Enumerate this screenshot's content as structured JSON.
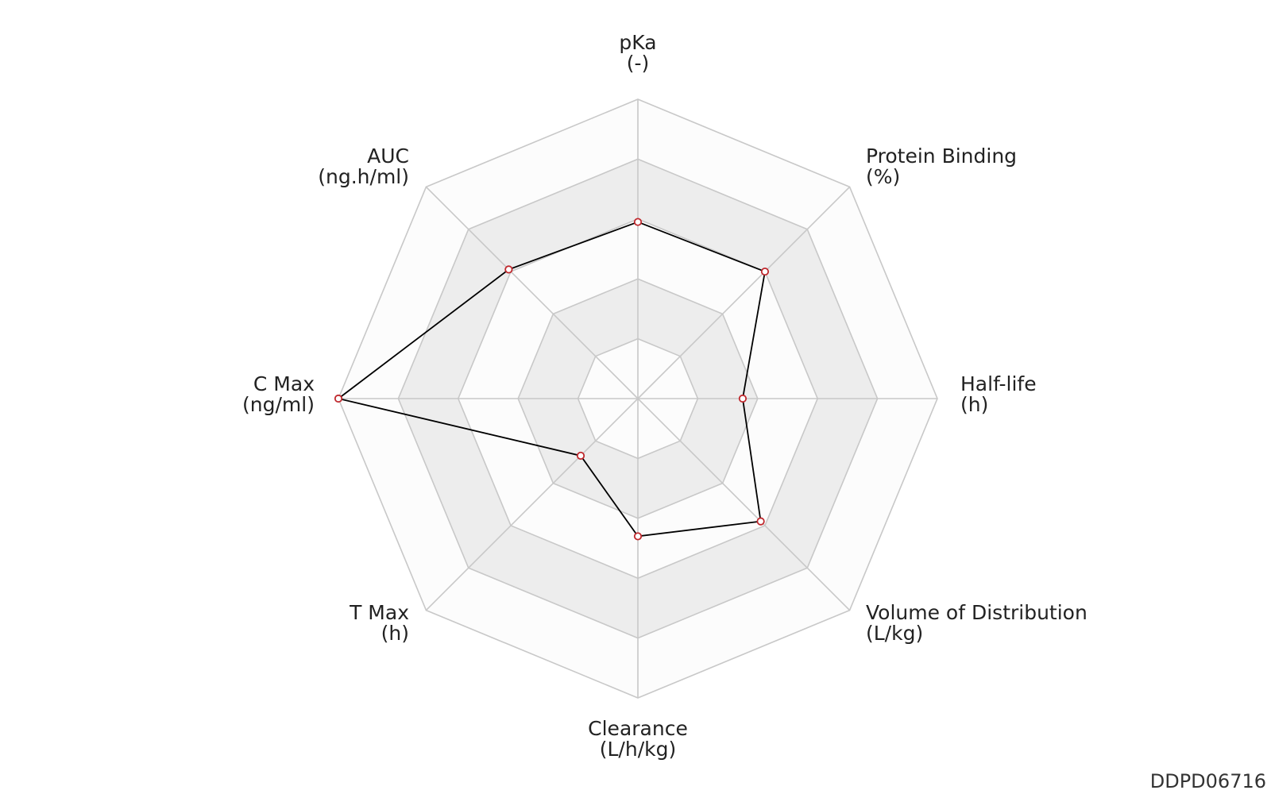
{
  "chart_data": {
    "type": "radar",
    "title": "",
    "axes": [
      {
        "name": "pKa",
        "unit": "(-)"
      },
      {
        "name": "Protein Binding",
        "unit": "(%)"
      },
      {
        "name": "Half-life",
        "unit": "(h)"
      },
      {
        "name": "Volume of Distribution",
        "unit": "(L/kg)"
      },
      {
        "name": "Clearance",
        "unit": "(L/h/kg)"
      },
      {
        "name": "T Max",
        "unit": "(h)"
      },
      {
        "name": "C Max",
        "unit": "(ng/ml)"
      },
      {
        "name": "AUC",
        "unit": "(ng.h/ml)"
      }
    ],
    "rings": 5,
    "range": [
      0,
      1
    ],
    "series": [
      {
        "values": [
          0.59,
          0.6,
          0.35,
          0.58,
          0.46,
          0.27,
          1.0,
          0.61
        ]
      }
    ],
    "colors": {
      "band_light": "#fcfcfc",
      "band_dark": "#ededed",
      "grid": "#c8c8c8",
      "line": "#000000",
      "marker_stroke": "#c0282d",
      "marker_fill": "#ffffff"
    }
  },
  "watermark": "DDPD06716"
}
